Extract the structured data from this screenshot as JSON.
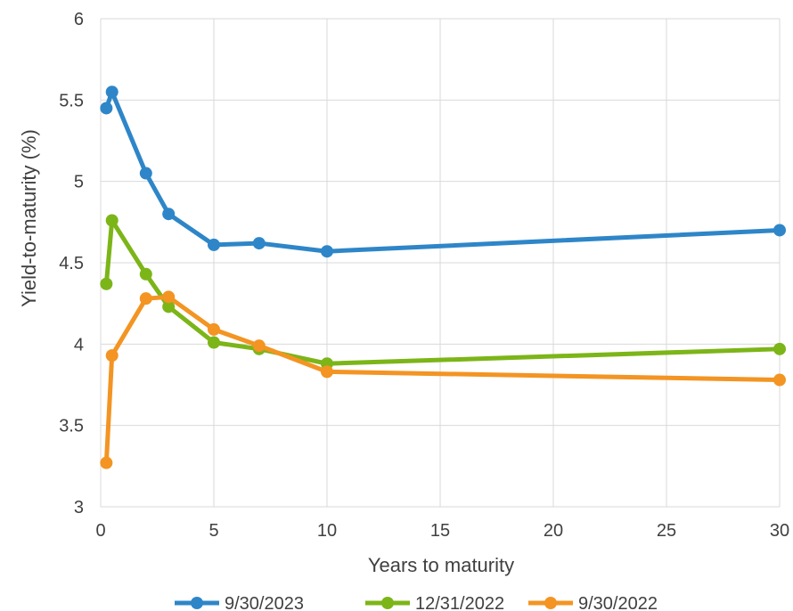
{
  "chart_data": {
    "type": "line",
    "title": "",
    "xlabel": "Years to maturity",
    "ylabel": "Yield-to-maturity (%)",
    "xlim": [
      0,
      30
    ],
    "ylim": [
      3,
      6
    ],
    "x_ticks": [
      0,
      5,
      10,
      15,
      20,
      25,
      30
    ],
    "y_ticks": [
      3,
      3.5,
      4,
      4.5,
      5,
      5.5,
      6
    ],
    "x_tick_labels": [
      "0",
      "5",
      "10",
      "15",
      "20",
      "25",
      "30"
    ],
    "y_tick_labels": [
      "3",
      "3.5",
      "4",
      "4.5",
      "5",
      "5.5",
      "6"
    ],
    "grid": true,
    "legend_position": "bottom",
    "x": [
      0.25,
      0.5,
      2,
      3,
      5,
      7,
      10,
      30
    ],
    "series": [
      {
        "name": "9/30/2023",
        "color": "#2E86C8",
        "values": [
          5.45,
          5.55,
          5.05,
          4.8,
          4.61,
          4.62,
          4.57,
          4.7
        ]
      },
      {
        "name": "12/31/2022",
        "color": "#7CB518",
        "values": [
          4.37,
          4.76,
          4.43,
          4.23,
          4.01,
          3.97,
          3.88,
          3.97
        ]
      },
      {
        "name": "9/30/2022",
        "color": "#F39423",
        "values": [
          3.27,
          3.93,
          4.28,
          4.29,
          4.09,
          3.99,
          3.83,
          3.78
        ]
      }
    ]
  }
}
